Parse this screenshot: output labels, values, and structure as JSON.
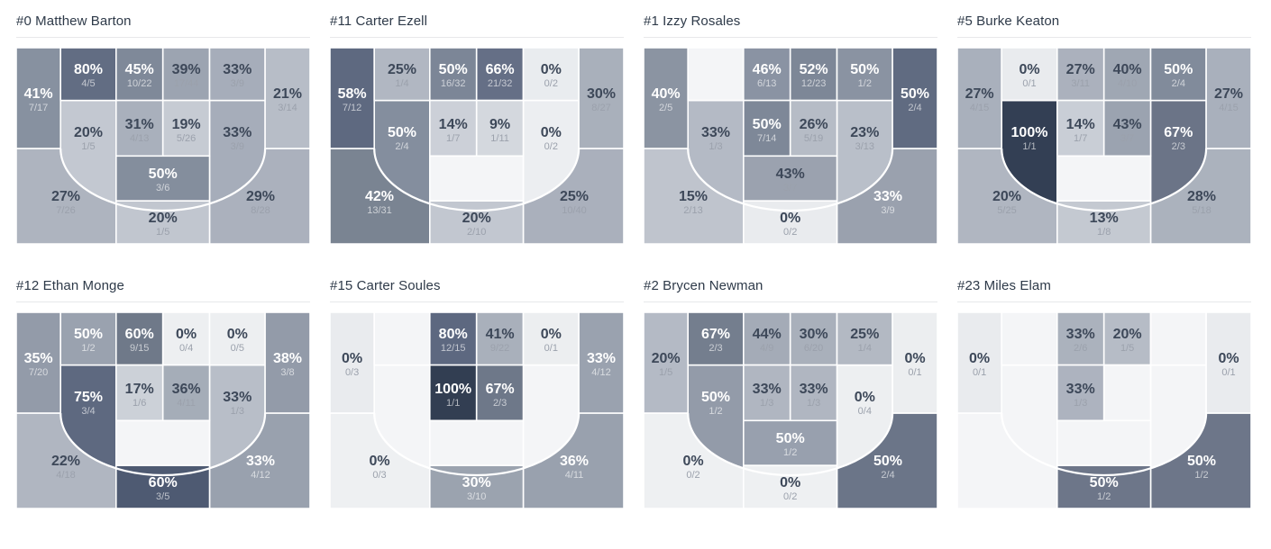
{
  "page": {
    "background": "#ffffff"
  },
  "palette": {
    "title_color": "#2e3a49",
    "rule_color": "#e7e8ea",
    "empty_fill": "#f4f5f7",
    "arc_color": "#ffffff",
    "cell_gap_color": "#ffffff",
    "pct_dark_text": "#3d4859",
    "frac_dark_text": "#9ba1ac",
    "pct_light_text": "#ffffff",
    "frac_light_text": "rgba(255,255,255,0.62)",
    "darkest_fill": "#323e52",
    "lightest_fill": "#e9ebee"
  },
  "chart_data": {
    "type": "heatmap",
    "subtype": "basketball-shot-zone-charts",
    "layout_hint": "8 half-court zone charts in 2 rows x 4 columns; zones shaded darker for higher FG%; white 3-point arc overlay; empty zones (no attempts) are near-white with no label",
    "zone_keys": [
      "left_wing",
      "top_1",
      "top_2",
      "top_3",
      "top_4",
      "right_wing",
      "mid_1",
      "mid_2",
      "mid_3",
      "mid_4",
      "left_corner",
      "free_throw",
      "restricted",
      "right_corner"
    ],
    "players": [
      {
        "title": "#0 Matthew Barton",
        "zones": {
          "left_wing": {
            "pct": "41%",
            "frac": "7/17",
            "fill": "#8791a0",
            "tone": "light"
          },
          "top_1": {
            "pct": "80%",
            "frac": "4/5",
            "fill": "#626d83",
            "tone": "light"
          },
          "top_2": {
            "pct": "45%",
            "frac": "10/22",
            "fill": "#7f8999",
            "tone": "light"
          },
          "top_3": {
            "pct": "39%",
            "frac": "17/44",
            "fill": "#9ca4b1",
            "tone": "dark"
          },
          "top_4": {
            "pct": "33%",
            "frac": "3/9",
            "fill": "#a6adba",
            "tone": "dark"
          },
          "right_wing": {
            "pct": "21%",
            "frac": "3/14",
            "fill": "#b7bdc7",
            "tone": "dark"
          },
          "mid_1": {
            "pct": "20%",
            "frac": "1/5",
            "fill": "#c3c8d1",
            "tone": "dark"
          },
          "mid_2": {
            "pct": "31%",
            "frac": "4/13",
            "fill": "#a9b0bc",
            "tone": "dark"
          },
          "mid_3": {
            "pct": "19%",
            "frac": "5/26",
            "fill": "#c6cbd3",
            "tone": "dark"
          },
          "mid_4": {
            "pct": "33%",
            "frac": "3/9",
            "fill": "#a6adba",
            "tone": "dark"
          },
          "left_corner": {
            "pct": "27%",
            "frac": "7/26",
            "fill": "#aeb4bf",
            "tone": "dark"
          },
          "free_throw": {
            "pct": "50%",
            "frac": "3/6",
            "fill": "#848e9d",
            "tone": "light"
          },
          "restricted": {
            "pct": "20%",
            "frac": "1/5",
            "fill": "#c1c6cf",
            "tone": "dark"
          },
          "right_corner": {
            "pct": "29%",
            "frac": "8/28",
            "fill": "#abb1bd",
            "tone": "dark"
          }
        }
      },
      {
        "title": "#11 Carter Ezell",
        "zones": {
          "left_wing": {
            "pct": "58%",
            "frac": "7/12",
            "fill": "#5e6980",
            "tone": "light"
          },
          "top_1": {
            "pct": "25%",
            "frac": "1/4",
            "fill": "#b1b7c2",
            "tone": "dark"
          },
          "top_2": {
            "pct": "50%",
            "frac": "16/32",
            "fill": "#7c8697",
            "tone": "light"
          },
          "top_3": {
            "pct": "66%",
            "frac": "21/32",
            "fill": "#656f86",
            "tone": "light"
          },
          "top_4": {
            "pct": "0%",
            "frac": "0/2",
            "fill": "#e9ecef",
            "tone": "dark"
          },
          "right_wing": {
            "pct": "30%",
            "frac": "8/27",
            "fill": "#a9b0bb",
            "tone": "dark"
          },
          "mid_1": {
            "pct": "50%",
            "frac": "2/4",
            "fill": "#848e9e",
            "tone": "light"
          },
          "mid_2": {
            "pct": "14%",
            "frac": "1/7",
            "fill": "#ccd0d8",
            "tone": "dark"
          },
          "mid_3": {
            "pct": "9%",
            "frac": "1/11",
            "fill": "#d4d8de",
            "tone": "dark"
          },
          "mid_4": {
            "pct": "0%",
            "frac": "0/2",
            "fill": "#eceef1",
            "tone": "dark"
          },
          "left_corner": {
            "pct": "42%",
            "frac": "13/31",
            "fill": "#7a8492",
            "tone": "light"
          },
          "free_throw": null,
          "restricted": {
            "pct": "20%",
            "frac": "2/10",
            "fill": "#c2c7d0",
            "tone": "dark"
          },
          "right_corner": {
            "pct": "25%",
            "frac": "10/40",
            "fill": "#aab0bc",
            "tone": "dark"
          }
        }
      },
      {
        "title": "#1 Izzy Rosales",
        "zones": {
          "left_wing": {
            "pct": "40%",
            "frac": "2/5",
            "fill": "#8b94a2",
            "tone": "light"
          },
          "top_1": null,
          "top_2": {
            "pct": "46%",
            "frac": "6/13",
            "fill": "#8a93a3",
            "tone": "light"
          },
          "top_3": {
            "pct": "52%",
            "frac": "12/23",
            "fill": "#7d8797",
            "tone": "light"
          },
          "top_4": {
            "pct": "50%",
            "frac": "1/2",
            "fill": "#8a93a2",
            "tone": "light"
          },
          "right_wing": {
            "pct": "50%",
            "frac": "2/4",
            "fill": "#606b81",
            "tone": "light"
          },
          "mid_1": {
            "pct": "33%",
            "frac": "1/3",
            "fill": "#b4bac5",
            "tone": "dark"
          },
          "mid_2": {
            "pct": "50%",
            "frac": "7/14",
            "fill": "#7e8898",
            "tone": "light"
          },
          "mid_3": {
            "pct": "26%",
            "frac": "5/19",
            "fill": "#b6bcc6",
            "tone": "dark"
          },
          "mid_4": {
            "pct": "23%",
            "frac": "3/13",
            "fill": "#b9bfc9",
            "tone": "dark"
          },
          "left_corner": {
            "pct": "15%",
            "frac": "2/13",
            "fill": "#bfc4cd",
            "tone": "dark"
          },
          "free_throw": {
            "pct": "43%",
            "frac": "3/7",
            "fill": "#9ba2af",
            "tone": "dark"
          },
          "restricted": {
            "pct": "0%",
            "frac": "0/2",
            "fill": "#e9ebee",
            "tone": "dark"
          },
          "right_corner": {
            "pct": "33%",
            "frac": "3/9",
            "fill": "#9aa1ae",
            "tone": "light"
          }
        }
      },
      {
        "title": "#5 Burke Keaton",
        "zones": {
          "left_wing": {
            "pct": "27%",
            "frac": "4/15",
            "fill": "#a9b0bc",
            "tone": "dark"
          },
          "top_1": {
            "pct": "0%",
            "frac": "0/1",
            "fill": "#e9ebee",
            "tone": "dark"
          },
          "top_2": {
            "pct": "27%",
            "frac": "3/11",
            "fill": "#abb1bd",
            "tone": "dark"
          },
          "top_3": {
            "pct": "40%",
            "frac": "4/10",
            "fill": "#9fa7b3",
            "tone": "dark"
          },
          "top_4": {
            "pct": "50%",
            "frac": "2/4",
            "fill": "#818b9b",
            "tone": "light"
          },
          "right_wing": {
            "pct": "27%",
            "frac": "4/15",
            "fill": "#a9b0bc",
            "tone": "dark"
          },
          "mid_1": {
            "pct": "100%",
            "frac": "1/1",
            "fill": "#333f54",
            "tone": "light"
          },
          "mid_2": {
            "pct": "14%",
            "frac": "1/7",
            "fill": "#c9ced6",
            "tone": "dark"
          },
          "mid_3": {
            "pct": "43%",
            "frac": "3/7",
            "fill": "#9ba3b0",
            "tone": "dark"
          },
          "mid_4": {
            "pct": "67%",
            "frac": "2/3",
            "fill": "#6b7487",
            "tone": "light"
          },
          "left_corner": {
            "pct": "20%",
            "frac": "5/25",
            "fill": "#b0b6c1",
            "tone": "dark"
          },
          "free_throw": null,
          "restricted": {
            "pct": "13%",
            "frac": "1/8",
            "fill": "#c4c9d1",
            "tone": "dark"
          },
          "right_corner": {
            "pct": "28%",
            "frac": "5/18",
            "fill": "#abb2bd",
            "tone": "dark"
          }
        }
      },
      {
        "title": "#12 Ethan Monge",
        "zones": {
          "left_wing": {
            "pct": "35%",
            "frac": "7/20",
            "fill": "#939ba9",
            "tone": "light"
          },
          "top_1": {
            "pct": "50%",
            "frac": "1/2",
            "fill": "#9aa2af",
            "tone": "light"
          },
          "top_2": {
            "pct": "60%",
            "frac": "9/15",
            "fill": "#6f7989",
            "tone": "light"
          },
          "top_3": {
            "pct": "0%",
            "frac": "0/4",
            "fill": "#edeff1",
            "tone": "dark"
          },
          "top_4": {
            "pct": "0%",
            "frac": "0/5",
            "fill": "#edeff1",
            "tone": "dark"
          },
          "right_wing": {
            "pct": "38%",
            "frac": "3/8",
            "fill": "#939ba9",
            "tone": "light"
          },
          "mid_1": {
            "pct": "75%",
            "frac": "3/4",
            "fill": "#5e6980",
            "tone": "light"
          },
          "mid_2": {
            "pct": "17%",
            "frac": "1/6",
            "fill": "#ccd1d8",
            "tone": "dark"
          },
          "mid_3": {
            "pct": "36%",
            "frac": "4/11",
            "fill": "#a5adb8",
            "tone": "dark"
          },
          "mid_4": {
            "pct": "33%",
            "frac": "1/3",
            "fill": "#b8bec8",
            "tone": "dark"
          },
          "left_corner": {
            "pct": "22%",
            "frac": "4/18",
            "fill": "#b0b6c1",
            "tone": "dark"
          },
          "free_throw": null,
          "restricted": {
            "pct": "60%",
            "frac": "3/5",
            "fill": "#4e5a72",
            "tone": "light"
          },
          "right_corner": {
            "pct": "33%",
            "frac": "4/12",
            "fill": "#99a1ae",
            "tone": "light"
          }
        }
      },
      {
        "title": "#15 Carter Soules",
        "zones": {
          "left_wing": {
            "pct": "0%",
            "frac": "0/3",
            "fill": "#e9ebee",
            "tone": "dark"
          },
          "top_1": null,
          "top_2": {
            "pct": "80%",
            "frac": "12/15",
            "fill": "#5d6880",
            "tone": "light"
          },
          "top_3": {
            "pct": "41%",
            "frac": "9/22",
            "fill": "#a9b0bb",
            "tone": "dark"
          },
          "top_4": {
            "pct": "0%",
            "frac": "0/1",
            "fill": "#eceef0",
            "tone": "dark"
          },
          "right_wing": {
            "pct": "33%",
            "frac": "4/12",
            "fill": "#9aa2af",
            "tone": "light"
          },
          "mid_1": null,
          "mid_2": {
            "pct": "100%",
            "frac": "1/1",
            "fill": "#323e52",
            "tone": "light"
          },
          "mid_3": {
            "pct": "67%",
            "frac": "2/3",
            "fill": "#6e7889",
            "tone": "light"
          },
          "mid_4": null,
          "left_corner": {
            "pct": "0%",
            "frac": "0/3",
            "fill": "#eef0f2",
            "tone": "dark"
          },
          "free_throw": null,
          "restricted": {
            "pct": "30%",
            "frac": "3/10",
            "fill": "#9ba3af",
            "tone": "light"
          },
          "right_corner": {
            "pct": "36%",
            "frac": "4/11",
            "fill": "#99a1ae",
            "tone": "light"
          }
        }
      },
      {
        "title": "#2 Brycen Newman",
        "zones": {
          "left_wing": {
            "pct": "20%",
            "frac": "1/5",
            "fill": "#b4bac5",
            "tone": "dark"
          },
          "top_1": {
            "pct": "67%",
            "frac": "2/3",
            "fill": "#747e8e",
            "tone": "light"
          },
          "top_2": {
            "pct": "44%",
            "frac": "4/9",
            "fill": "#a4abb7",
            "tone": "dark"
          },
          "top_3": {
            "pct": "30%",
            "frac": "6/20",
            "fill": "#a9b0bb",
            "tone": "dark"
          },
          "top_4": {
            "pct": "25%",
            "frac": "1/4",
            "fill": "#b3b9c3",
            "tone": "dark"
          },
          "right_wing": {
            "pct": "0%",
            "frac": "0/1",
            "fill": "#eceef0",
            "tone": "dark"
          },
          "mid_1": {
            "pct": "50%",
            "frac": "1/2",
            "fill": "#939ba9",
            "tone": "light"
          },
          "mid_2": {
            "pct": "33%",
            "frac": "1/3",
            "fill": "#b0b6c1",
            "tone": "dark"
          },
          "mid_3": {
            "pct": "33%",
            "frac": "1/3",
            "fill": "#b0b6c1",
            "tone": "dark"
          },
          "mid_4": {
            "pct": "0%",
            "frac": "0/4",
            "fill": "#edeff1",
            "tone": "dark"
          },
          "left_corner": {
            "pct": "0%",
            "frac": "0/2",
            "fill": "#eef0f2",
            "tone": "dark"
          },
          "free_throw": {
            "pct": "50%",
            "frac": "1/2",
            "fill": "#98a0ae",
            "tone": "light"
          },
          "restricted": {
            "pct": "0%",
            "frac": "0/2",
            "fill": "#eef0f2",
            "tone": "dark"
          },
          "right_corner": {
            "pct": "50%",
            "frac": "2/4",
            "fill": "#6b7588",
            "tone": "light"
          }
        }
      },
      {
        "title": "#23 Miles Elam",
        "zones": {
          "left_wing": {
            "pct": "0%",
            "frac": "0/1",
            "fill": "#e9ebee",
            "tone": "dark"
          },
          "top_1": null,
          "top_2": {
            "pct": "33%",
            "frac": "2/6",
            "fill": "#abb2bd",
            "tone": "dark"
          },
          "top_3": {
            "pct": "20%",
            "frac": "1/5",
            "fill": "#b6bcc6",
            "tone": "dark"
          },
          "top_4": null,
          "right_wing": {
            "pct": "0%",
            "frac": "0/1",
            "fill": "#e9ebee",
            "tone": "dark"
          },
          "mid_1": null,
          "mid_2": {
            "pct": "33%",
            "frac": "1/3",
            "fill": "#adb3bf",
            "tone": "dark"
          },
          "mid_3": null,
          "mid_4": null,
          "left_corner": null,
          "free_throw": null,
          "restricted": {
            "pct": "50%",
            "frac": "1/2",
            "fill": "#6d7689",
            "tone": "light"
          },
          "right_corner": {
            "pct": "50%",
            "frac": "1/2",
            "fill": "#6d7689",
            "tone": "light"
          }
        }
      }
    ]
  }
}
